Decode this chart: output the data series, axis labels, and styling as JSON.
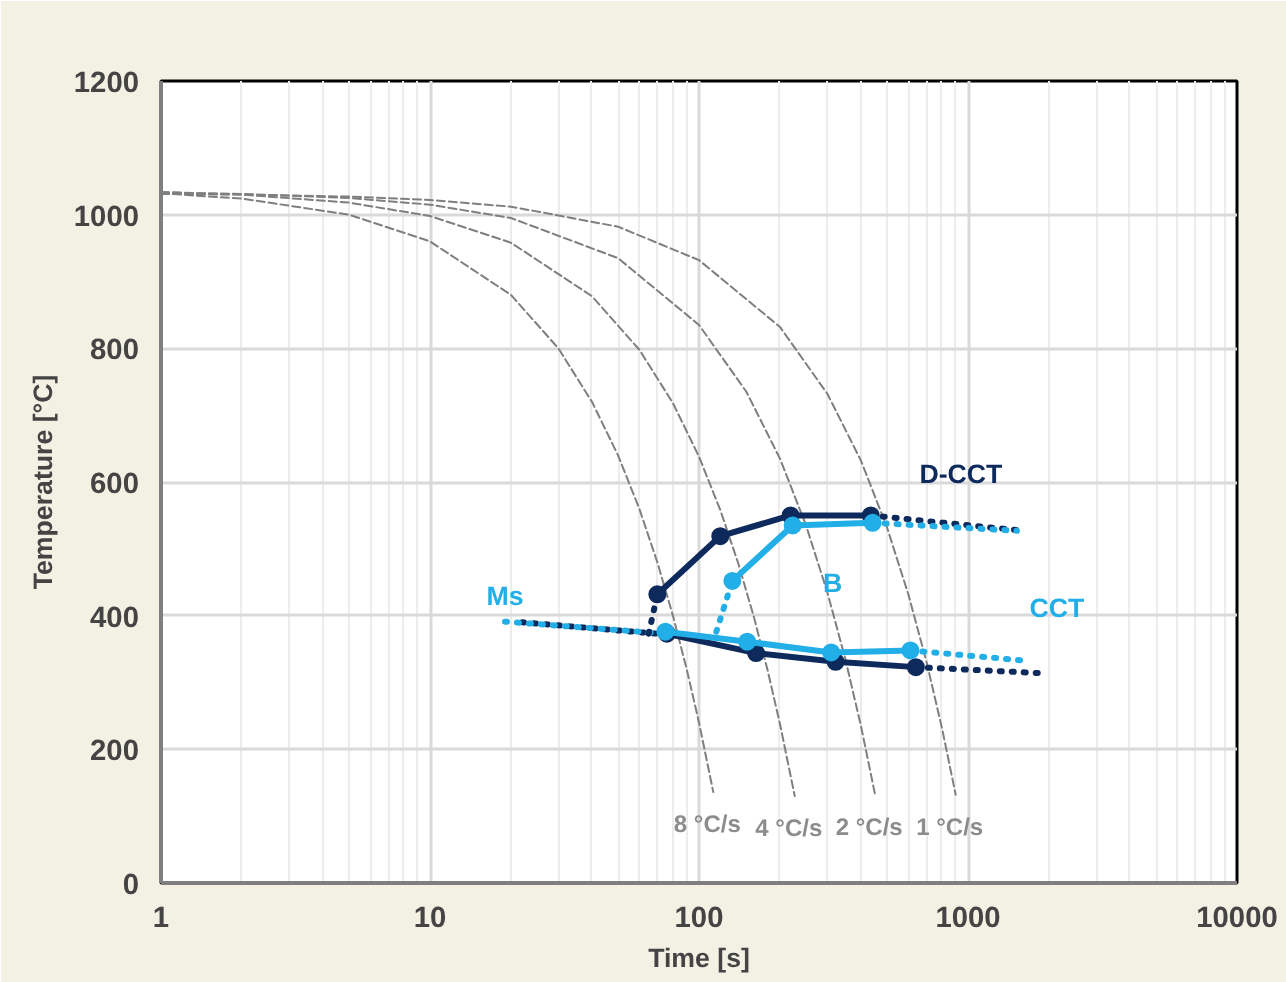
{
  "chart_data": {
    "type": "line",
    "xlabel": "Time [s]",
    "ylabel": "Temperature [°C]",
    "log": "x",
    "xlim": [
      1,
      10000
    ],
    "ylim": [
      0,
      1200
    ],
    "xticks": [
      1,
      10,
      100,
      1000,
      10000
    ],
    "yticks": [
      0,
      200,
      400,
      600,
      800,
      1000,
      1200
    ],
    "grid": true,
    "line_style": "solid",
    "series": [
      {
        "color": "#7f7f7f",
        "line_style": "dashed",
        "x": [
          1,
          2,
          5,
          10,
          20,
          30,
          40,
          50,
          60,
          70,
          80,
          90,
          100,
          113
        ],
        "values": [
          1032,
          1024,
          1000,
          960,
          880,
          800,
          720,
          640,
          560,
          480,
          400,
          320,
          240,
          136
        ]
      },
      {
        "color": "#7f7f7f",
        "line_style": "dashed",
        "x": [
          1,
          2,
          5,
          10,
          20,
          40,
          60,
          80,
          100,
          120,
          140,
          160,
          180,
          200,
          227
        ],
        "values": [
          1034,
          1030,
          1018,
          998,
          958,
          878,
          798,
          718,
          638,
          558,
          478,
          398,
          318,
          238,
          130
        ]
      },
      {
        "color": "#7f7f7f",
        "line_style": "dashed",
        "x": [
          1,
          2,
          5,
          10,
          20,
          50,
          100,
          150,
          200,
          250,
          300,
          350,
          400,
          452
        ],
        "values": [
          1033,
          1031,
          1025,
          1015,
          995,
          935,
          835,
          735,
          635,
          535,
          435,
          335,
          235,
          131
        ]
      },
      {
        "color": "#7f7f7f",
        "line_style": "dashed",
        "x": [
          1,
          2,
          5,
          10,
          20,
          50,
          100,
          200,
          300,
          400,
          500,
          600,
          700,
          800,
          900
        ],
        "values": [
          1031,
          1030,
          1027,
          1022,
          1012,
          982,
          932,
          832,
          732,
          632,
          532,
          432,
          332,
          232,
          132
        ]
      },
      {
        "color": "#0e2a5c",
        "line_style": "dotted",
        "x": [
          22,
          70
        ],
        "values": [
          390,
          373
        ]
      },
      {
        "color": "#22aee6",
        "line_style": "dotted",
        "x": [
          19,
          70
        ],
        "values": [
          391,
          374
        ]
      },
      {
        "color": "#0e2a5c",
        "marker": "circle",
        "x": [
          76,
          163,
          322,
          640
        ],
        "values": [
          373,
          344,
          331,
          323
        ]
      },
      {
        "color": "#0e2a5c",
        "line_style": "dotted",
        "x": [
          640,
          1870
        ],
        "values": [
          323,
          314
        ]
      },
      {
        "color": "#22aee6",
        "marker": "circle",
        "x": [
          75,
          151,
          310,
          611
        ],
        "values": [
          376,
          361,
          345,
          348
        ]
      },
      {
        "color": "#22aee6",
        "line_style": "dotted",
        "x": [
          611,
          1600
        ],
        "values": [
          348,
          333
        ]
      },
      {
        "color": "#0e2a5c",
        "line_style": "dotted",
        "x": [
          65,
          70
        ],
        "values": [
          373,
          432
        ]
      },
      {
        "color": "#0e2a5c",
        "marker": "circle",
        "x": [
          70,
          120,
          219,
          435
        ],
        "values": [
          432,
          519,
          550,
          550
        ]
      },
      {
        "color": "#0e2a5c",
        "line_style": "dotted",
        "x": [
          435,
          1520
        ],
        "values": [
          550,
          528
        ]
      },
      {
        "color": "#22aee6",
        "line_style": "dotted",
        "x": [
          116,
          133
        ],
        "values": [
          376,
          452
        ]
      },
      {
        "color": "#22aee6",
        "marker": "circle",
        "x": [
          133,
          223,
          442
        ],
        "values": [
          452,
          535,
          539
        ]
      },
      {
        "color": "#22aee6",
        "line_style": "dotted",
        "x": [
          442,
          1520
        ],
        "values": [
          539,
          527
        ]
      }
    ],
    "annotations": [
      {
        "text": "8 °C/s",
        "x": 113,
        "y": 136
      },
      {
        "text": "4 °C/s",
        "x": 227,
        "y": 130
      },
      {
        "text": "2 °C/s",
        "x": 452,
        "y": 131
      },
      {
        "text": "1 °C/s",
        "x": 900,
        "y": 132
      },
      {
        "text": "D-CCT",
        "x": 1520,
        "y": 528
      },
      {
        "text": "CCT",
        "x": 1600,
        "y": 333
      },
      {
        "text": "Ms",
        "x": 19,
        "y": 391
      },
      {
        "text": "B",
        "x": 223,
        "y": 535
      }
    ]
  }
}
